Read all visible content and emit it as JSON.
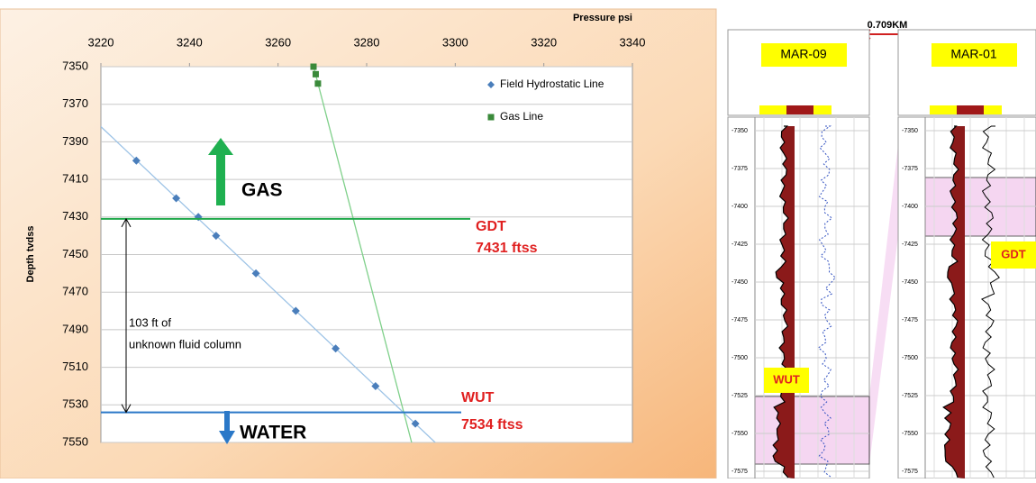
{
  "chart_data": {
    "type": "scatter",
    "x_label": "Pressure psi",
    "y_label": "Depth tvdss",
    "xlim": [
      3220,
      3340
    ],
    "xticks": [
      3220,
      3240,
      3260,
      3280,
      3300,
      3320,
      3340
    ],
    "ylim": [
      7350,
      7550
    ],
    "yticks": [
      7350,
      7370,
      7390,
      7410,
      7430,
      7450,
      7470,
      7490,
      7510,
      7530,
      7550
    ],
    "y_inverted": true,
    "x_axis_position": "top",
    "grid": true,
    "legend": "top-right",
    "series": [
      {
        "name": "Field Hydrostatic Line",
        "color": "#4a7ebb",
        "marker": "diamond",
        "trendline": true,
        "x": [
          3228,
          3237,
          3242,
          3246,
          3255,
          3264,
          3273,
          3282,
          3291
        ],
        "values": [
          7400,
          7420,
          7430,
          7440,
          7460,
          7480,
          7500,
          7520,
          7540
        ]
      },
      {
        "name": "Gas Line",
        "color": "#3a8a3a",
        "marker": "square",
        "trendline": true,
        "x": [
          3268,
          3268.5,
          3269
        ],
        "values": [
          7350,
          7354,
          7359
        ]
      }
    ],
    "reference_lines": [
      {
        "label": "GDT",
        "value": 7431,
        "value_label": "7431 ftss",
        "color": "#1fa84a"
      },
      {
        "label": "WUT",
        "value": 7534,
        "value_label": "7534 ftss",
        "color": "#2a78c8"
      }
    ],
    "annotations": {
      "gas": "GAS",
      "water": "WATER",
      "column": [
        "103 ft of",
        "unknown fluid column"
      ]
    }
  },
  "well_logs": {
    "distance": "0.709KM",
    "wells": [
      {
        "name": "MAR-09",
        "depth_ticks": [
          -7350,
          -7375,
          -7400,
          -7425,
          -7450,
          -7475,
          -7500,
          -7525,
          -7550,
          -7575
        ]
      },
      {
        "name": "MAR-01",
        "depth_ticks": [
          -7350,
          -7375,
          -7400,
          -7425,
          -7450,
          -7475,
          -7500,
          -7525,
          -7550,
          -7575
        ]
      }
    ],
    "markers": {
      "wut": "WUT",
      "gdt": "GDT"
    }
  }
}
